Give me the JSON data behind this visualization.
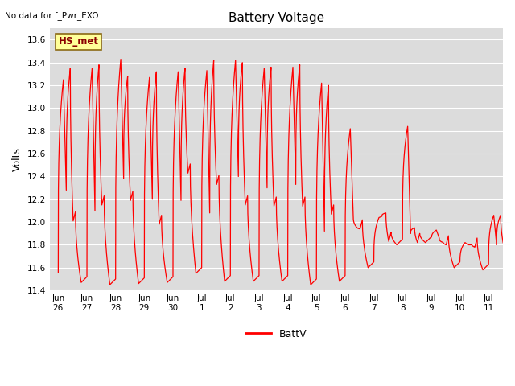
{
  "title": "Battery Voltage",
  "note": "No data for f_Pwr_EXO",
  "ylabel": "Volts",
  "legend_label": "BattV",
  "hs_label": "HS_met",
  "line_color": "#FF0000",
  "bg_color": "#DCDCDC",
  "ylim": [
    11.4,
    13.7
  ],
  "yticks": [
    11.4,
    11.6,
    11.8,
    12.0,
    12.2,
    12.4,
    12.6,
    12.8,
    13.0,
    13.2,
    13.4,
    13.6
  ],
  "x_tick_labels": [
    "Jun\n26",
    "Jun\n27",
    "Jun\n28",
    "Jun\n29",
    "Jun\n30",
    "Jul\n1",
    "Jul\n2",
    "Jul\n3",
    "Jul\n4",
    "Jul\n5",
    "Jul\n6",
    "Jul\n7",
    "Jul\n8",
    "Jul\n9",
    "Jul\n10",
    "Jul\n11"
  ],
  "x_tick_positions": [
    0,
    1,
    2,
    3,
    4,
    5,
    6,
    7,
    8,
    9,
    10,
    11,
    12,
    13,
    14,
    15
  ],
  "cycles": [
    [
      11.56,
      12.28,
      13.25,
      12.01,
      13.35,
      11.47
    ],
    [
      11.47,
      12.1,
      13.35,
      12.15,
      13.38,
      11.45
    ],
    [
      11.45,
      12.38,
      13.43,
      12.19,
      13.28,
      11.46
    ],
    [
      11.47,
      12.2,
      13.27,
      11.98,
      13.32,
      11.47
    ],
    [
      11.47,
      12.19,
      13.32,
      12.43,
      13.35,
      11.55
    ],
    [
      11.55,
      12.08,
      13.33,
      12.33,
      13.42,
      11.48
    ],
    [
      11.48,
      12.4,
      13.42,
      12.15,
      13.4,
      11.48
    ],
    [
      11.48,
      12.3,
      13.35,
      12.14,
      13.36,
      11.48
    ],
    [
      11.48,
      12.33,
      13.36,
      12.14,
      13.38,
      11.45
    ],
    [
      11.45,
      11.92,
      13.22,
      12.07,
      13.2,
      11.48
    ],
    [
      11.48,
      12.07,
      12.82,
      11.94,
      11.95,
      11.6
    ],
    [
      11.6,
      12.05,
      12.04,
      11.83,
      12.08,
      11.8
    ],
    [
      11.8,
      11.9,
      12.84,
      11.82,
      11.95,
      11.82
    ],
    [
      11.82,
      11.86,
      11.93,
      11.8,
      11.82,
      11.6
    ],
    [
      11.6,
      11.8,
      11.82,
      11.78,
      11.8,
      11.58
    ],
    [
      11.58,
      11.8,
      12.06,
      11.8,
      12.06,
      11.6
    ]
  ]
}
